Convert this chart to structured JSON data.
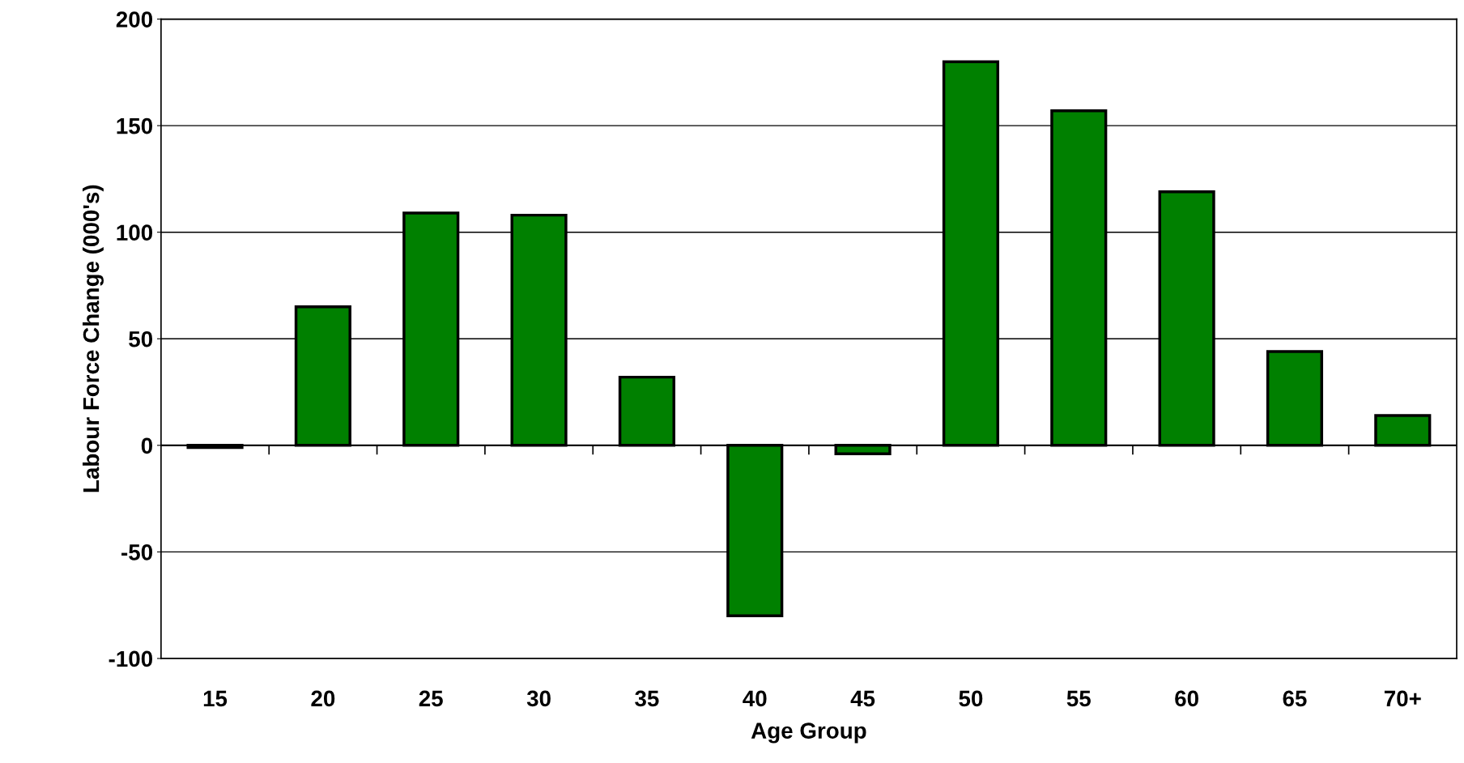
{
  "chart_data": {
    "type": "bar",
    "xlabel": "Age Group",
    "ylabel": "Labour Force Change (000's)",
    "categories": [
      "15",
      "20",
      "25",
      "30",
      "35",
      "40",
      "45",
      "50",
      "55",
      "60",
      "65",
      "70+"
    ],
    "values": [
      -1,
      65,
      109,
      108,
      32,
      -80,
      -4,
      180,
      157,
      119,
      44,
      14
    ],
    "color": "#008000",
    "ylim": [
      -100,
      200
    ],
    "yticks": [
      -100,
      -50,
      0,
      50,
      100,
      150,
      200
    ],
    "grid": "y"
  }
}
